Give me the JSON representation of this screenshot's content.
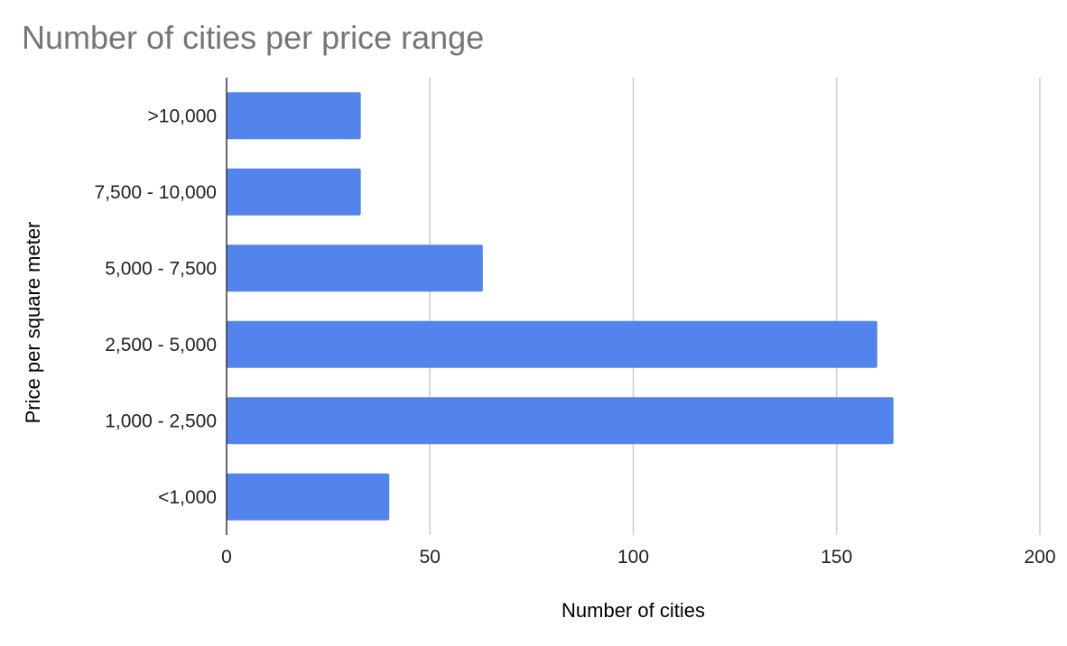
{
  "chart_data": {
    "type": "bar",
    "orientation": "horizontal",
    "title": "Number of cities per price range",
    "xlabel": "Number of cities",
    "ylabel": "Price per square meter",
    "categories": [
      ">10,000",
      "7,500 - 10,000",
      "5,000 - 7,500",
      "2,500 - 5,000",
      "1,000 - 2,500",
      "<1,000"
    ],
    "values": [
      33,
      33,
      63,
      160,
      164,
      40
    ],
    "xlim": [
      0,
      200
    ],
    "xticks": [
      0,
      50,
      100,
      150,
      200
    ],
    "grid": "vertical",
    "legend": "none",
    "bar_color": "#5383EC"
  }
}
